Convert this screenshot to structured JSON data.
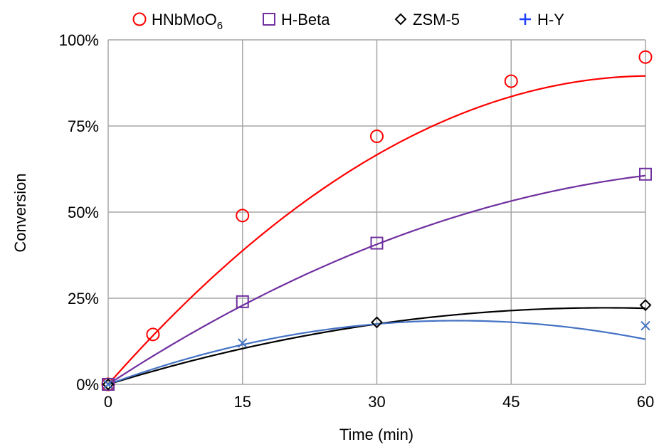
{
  "chart_data": {
    "type": "scatter",
    "xlabel": "Time (min)",
    "ylabel": "Conversion",
    "xlim": [
      0,
      60
    ],
    "ylim": [
      0,
      100
    ],
    "x_ticks": [
      0,
      15,
      30,
      45,
      60
    ],
    "y_ticks": [
      0,
      25,
      50,
      75,
      100
    ],
    "x_tick_labels": [
      "0",
      "15",
      "30",
      "45",
      "60"
    ],
    "y_tick_labels": [
      "0%",
      "25%",
      "50%",
      "75%",
      "100%"
    ],
    "grid": true,
    "legend_position": "top",
    "series": [
      {
        "name": "HNbMoO",
        "name_subscript": "6",
        "marker": "circle",
        "color": "#ff0000",
        "points": [
          [
            0,
            0
          ],
          [
            5,
            14.5
          ],
          [
            15,
            49
          ],
          [
            30,
            72
          ],
          [
            45,
            88
          ],
          [
            60,
            95
          ]
        ],
        "trend": [
          0,
          2.95,
          -0.0243
        ]
      },
      {
        "name": "H-Beta",
        "marker": "square",
        "color": "#7030a0",
        "points": [
          [
            0,
            0
          ],
          [
            15,
            24
          ],
          [
            30,
            41
          ],
          [
            60,
            61
          ]
        ],
        "trend": [
          0,
          1.7,
          -0.0115
        ]
      },
      {
        "name": "ZSM-5",
        "marker": "diamond",
        "color": "#000000",
        "points": [
          [
            0,
            0
          ],
          [
            30,
            18
          ],
          [
            60,
            23
          ]
        ],
        "trend": [
          0,
          0.8,
          -0.0072
        ]
      },
      {
        "name": "H-Y",
        "marker": "cross",
        "color": "#4472c4",
        "legend_color": "#1f3fff",
        "points": [
          [
            0,
            0
          ],
          [
            15,
            12
          ],
          [
            60,
            17
          ]
        ],
        "trend": [
          0,
          0.95,
          -0.0122
        ]
      }
    ]
  }
}
